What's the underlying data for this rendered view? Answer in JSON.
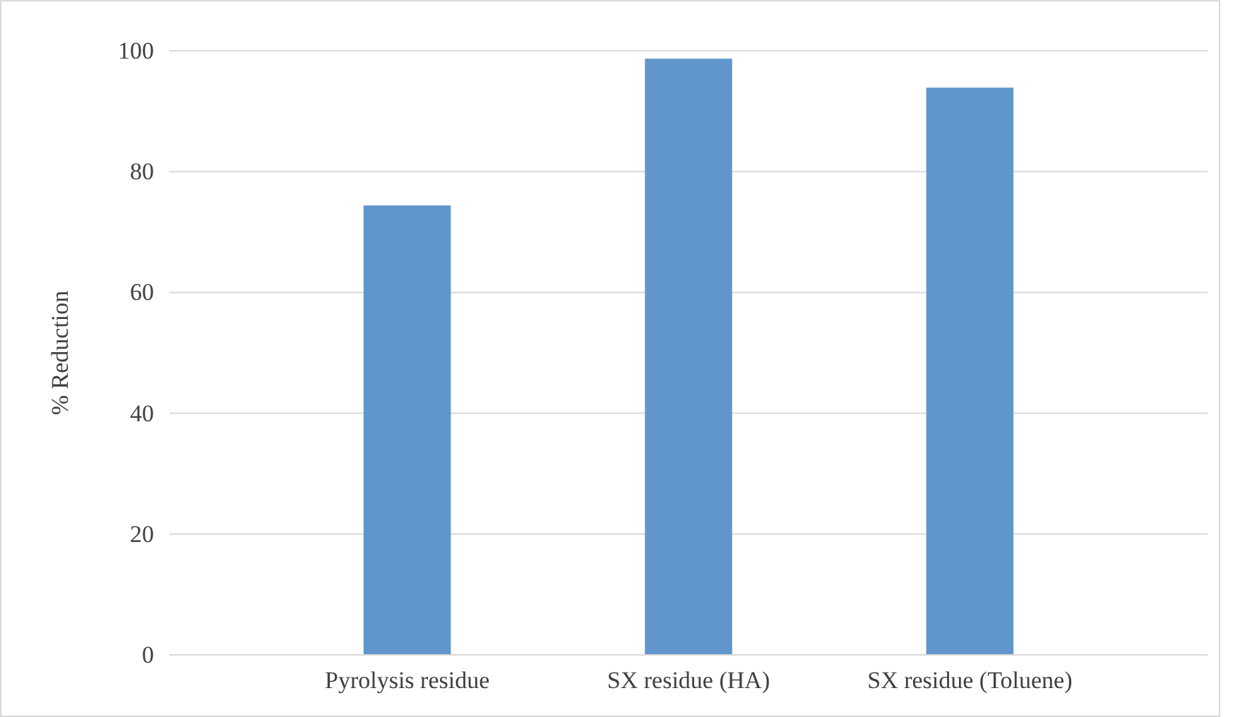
{
  "chart_data": {
    "type": "bar",
    "ylabel": "% Reduction",
    "categories": [
      "Pyrolysis residue",
      "SX residue (HA)",
      "SX residue (Toluene)"
    ],
    "values": [
      74.4,
      98.7,
      93.9
    ],
    "color": "#6096cb",
    "ylim": [
      0,
      100
    ],
    "yticks": [
      0,
      20,
      40,
      60,
      80,
      100
    ],
    "grid": "y"
  }
}
